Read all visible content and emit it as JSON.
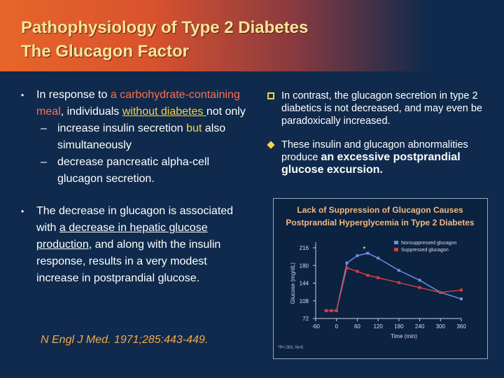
{
  "header": {
    "title_lines": [
      "Pathophysiology of Type 2 Diabetes",
      "The Glucagon Factor"
    ]
  },
  "left": {
    "bullets": [
      {
        "segments": [
          {
            "text": "In response to "
          },
          {
            "text": "a carbohydrate-containing meal",
            "style": "red"
          },
          {
            "text": ", individuals "
          },
          {
            "text": "without diabetes ",
            "style": "yellow-underline"
          },
          {
            "text": "not only"
          }
        ],
        "sub": [
          {
            "segments": [
              {
                "text": "increase insulin secretion "
              },
              {
                "text": "but",
                "style": "yellow"
              },
              {
                "text": " also simultaneously"
              }
            ]
          },
          {
            "segments": [
              {
                "text": "decrease pancreatic alpha-cell glucagon secretion."
              }
            ]
          }
        ]
      },
      {
        "segments": [
          {
            "text": "The decrease in glucagon is associated with "
          },
          {
            "text": "a decrease in hepatic glucose production",
            "style": "underline"
          },
          {
            "text": ", and along with the insulin response, results in a very modest increase in postprandial glucose."
          }
        ]
      }
    ],
    "reference": "N Engl J Med. 1971;285:443-449."
  },
  "right": {
    "bullets": [
      {
        "segments": [
          {
            "text": "In contrast, the glucagon secretion in type 2 diabetics is not decreased, and may even be paradoxically increased."
          }
        ]
      },
      {
        "segments": [
          {
            "text": "These insulin and glucagon abnormalities produce "
          },
          {
            "text": "an excessive postprandial glucose excursion.",
            "style": "bold"
          }
        ]
      }
    ]
  },
  "chart_data": {
    "type": "line",
    "title_lines": [
      "Lack of Suppression of Glucagon Causes",
      "Postprandial Hyperglycemia in Type 2 Diabetes"
    ],
    "x_label": "Time (min)",
    "y_label": "Glucose (mg/dL)",
    "x": [
      -30,
      -15,
      0,
      30,
      60,
      90,
      120,
      180,
      240,
      300,
      360
    ],
    "series": [
      {
        "name": "Nonsuppressed glucagon",
        "color": "#6f8fe0",
        "values": [
          88,
          88,
          88,
          185,
          200,
          205,
          195,
          170,
          150,
          125,
          112
        ]
      },
      {
        "name": "Suppressed glucagon",
        "color": "#d04040",
        "values": [
          88,
          88,
          88,
          175,
          168,
          160,
          155,
          145,
          135,
          125,
          130
        ]
      }
    ],
    "xlim": [
      -60,
      360
    ],
    "xticks": [
      -60,
      0,
      60,
      120,
      180,
      240,
      300,
      360
    ],
    "ylim": [
      72,
      216
    ],
    "yticks": [
      72,
      108,
      144,
      180,
      216
    ],
    "annotation": "*",
    "footnote": "*P<.001; N=5"
  }
}
